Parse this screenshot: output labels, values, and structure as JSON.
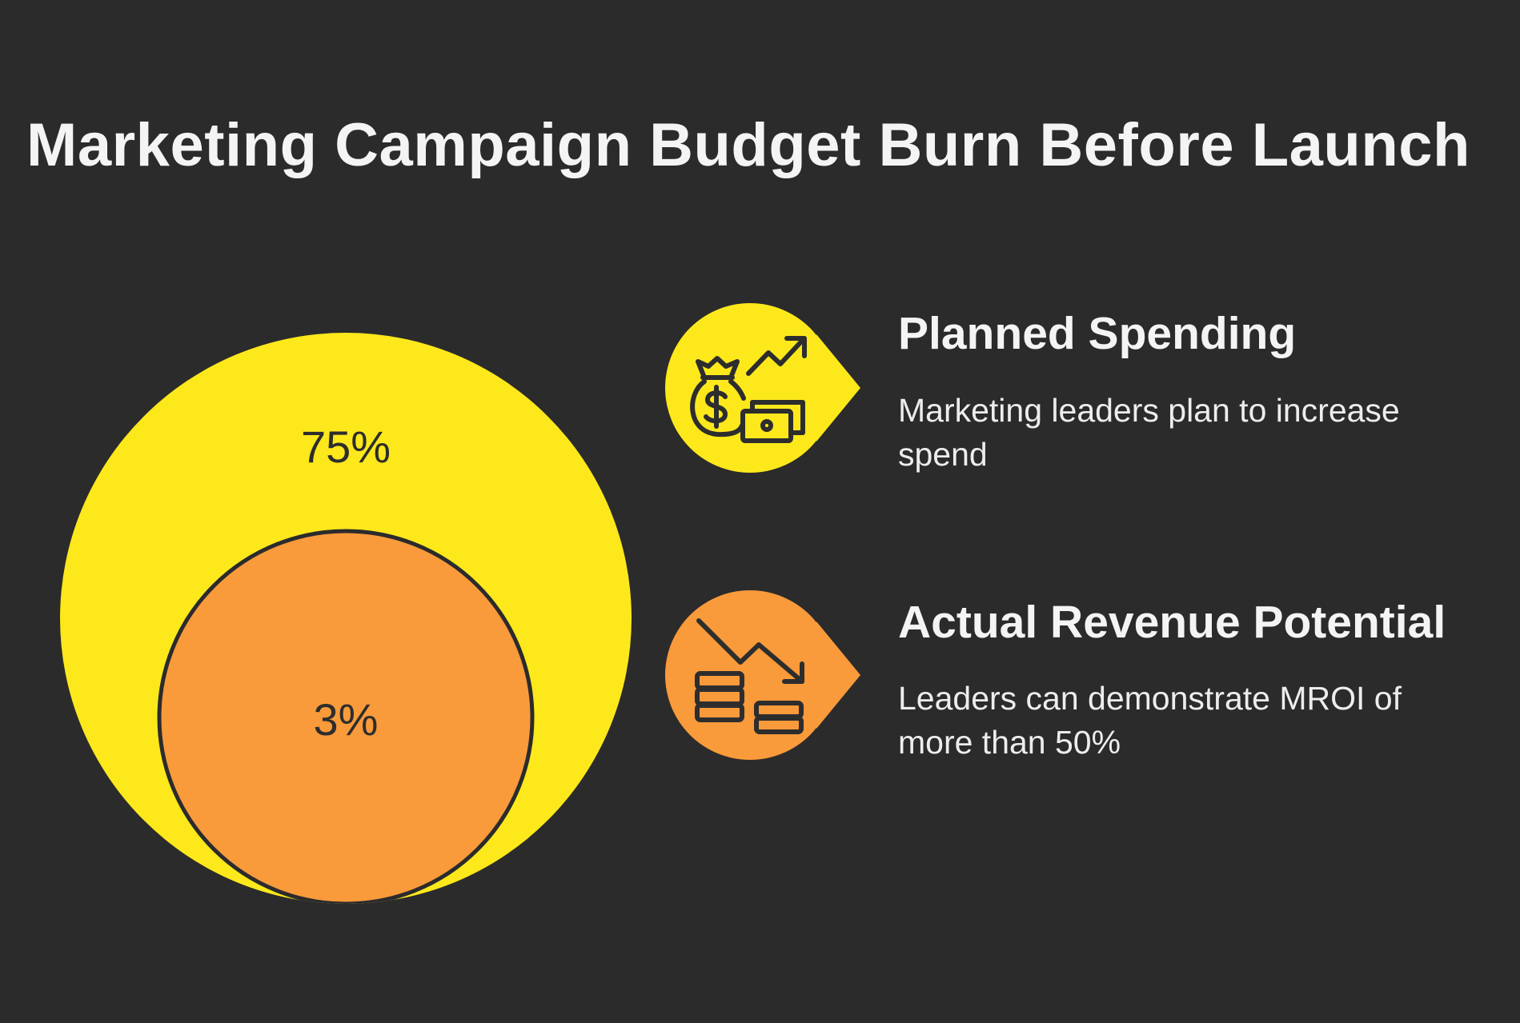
{
  "title": "Marketing Campaign Budget Burn Before Launch",
  "circles": {
    "outer": {
      "label": "75%",
      "color": "#fde81b"
    },
    "inner": {
      "label": "3%",
      "color": "#f99a3b"
    }
  },
  "items": [
    {
      "heading": "Planned Spending",
      "description": "Marketing leaders plan to increase spend",
      "icon": "money-bag-growth-icon",
      "color": "#fde81b"
    },
    {
      "heading": "Actual Revenue Potential",
      "description": "Leaders can demonstrate MROI of more than 50%",
      "icon": "coins-decline-icon",
      "color": "#f99a3b"
    }
  ]
}
